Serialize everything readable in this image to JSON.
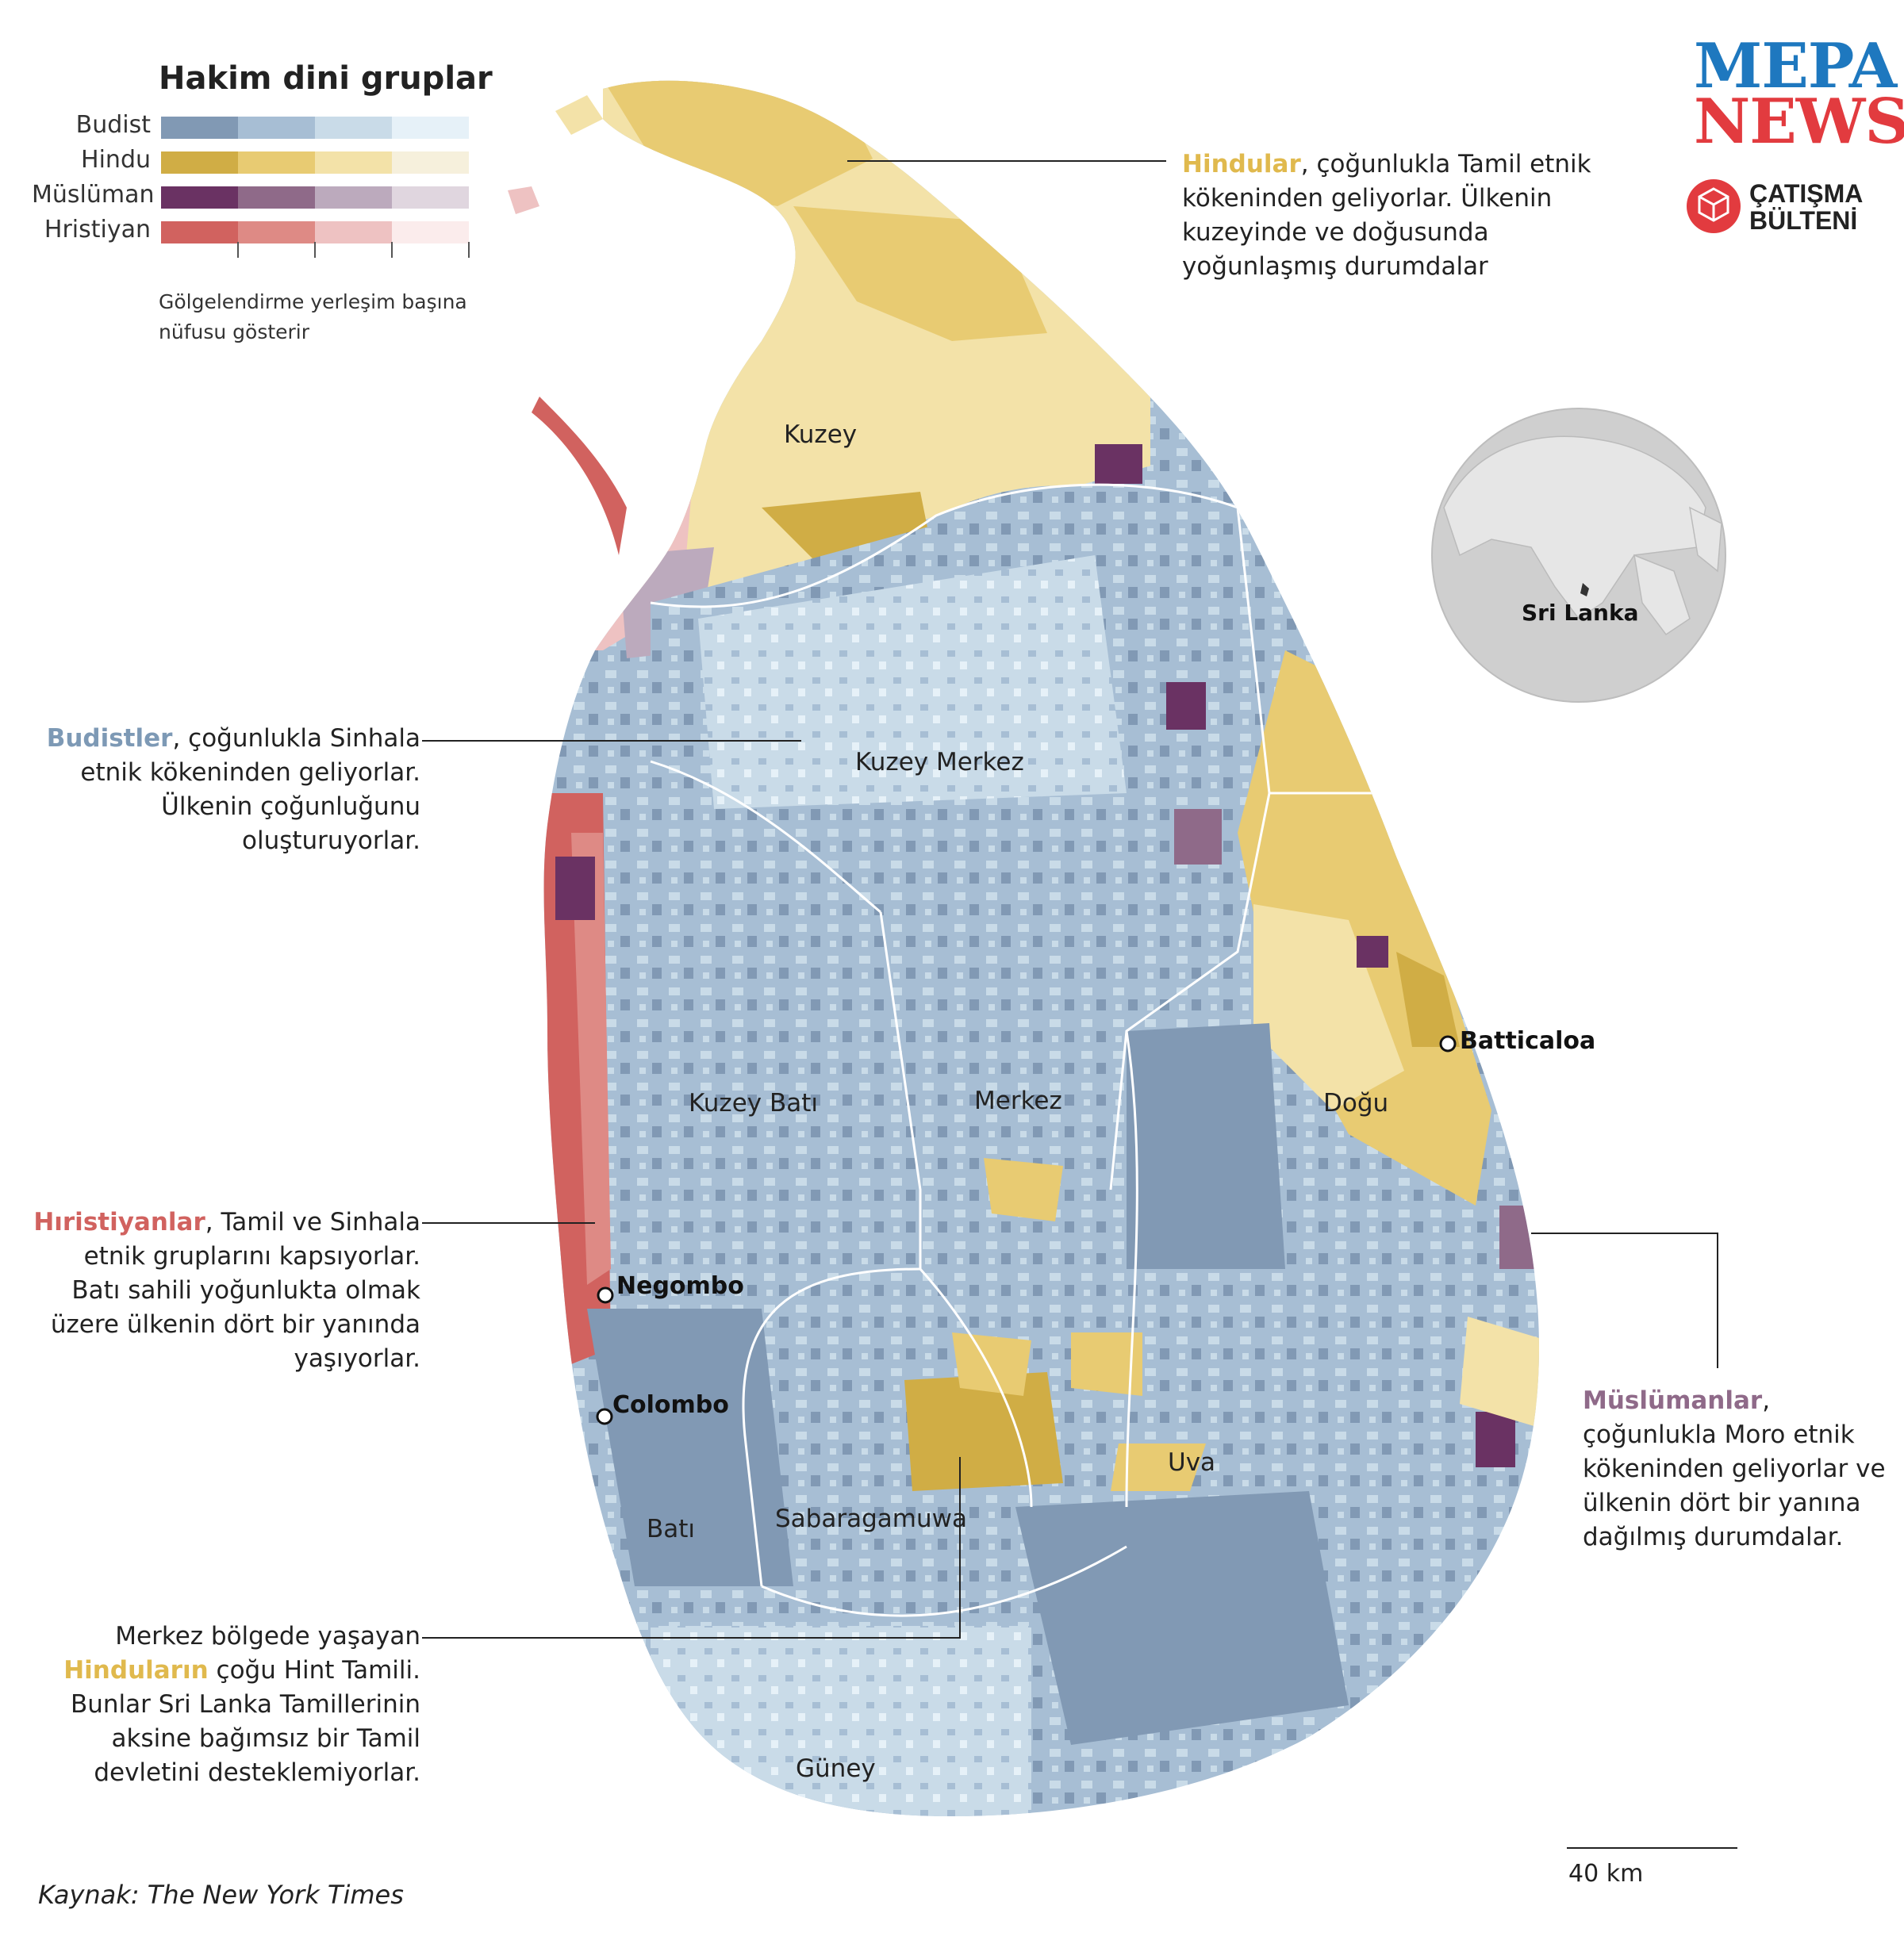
{
  "legend": {
    "title": "Hakim dini gruplar",
    "groups": [
      {
        "name": "Budist",
        "colors": [
          "#8199b4",
          "#a7bed4",
          "#c9dbe8",
          "#e6f1f8"
        ]
      },
      {
        "name": "Hindu",
        "colors": [
          "#d0ad45",
          "#e8cb72",
          "#f3e2a8",
          "#f6f0dc"
        ]
      },
      {
        "name": "Müslüman",
        "colors": [
          "#6a3263",
          "#8f6a89",
          "#bcaabd",
          "#e0d6df"
        ]
      },
      {
        "name": "Hristiyan",
        "colors": [
          "#d1625f",
          "#de8a85",
          "#eec2c2",
          "#fbecec"
        ]
      }
    ],
    "note": "Gölgelendirme yerleşim başına nüfusu gösterir"
  },
  "brand": {
    "line1": "MEPA",
    "line2": "NEWS",
    "sub1": "ÇATIŞMA",
    "sub2": "BÜLTENİ",
    "icon": "hexagon-logo-icon"
  },
  "annotations": {
    "hindu": {
      "highlight": "Hindular",
      "text": ", çoğunlukla Tamil etnik kökeninden geliyorlar. Ülkenin kuzeyinde ve doğusunda yoğunlaşmış durumdalar"
    },
    "buddhist": {
      "highlight": "Budistler",
      "text": ", çoğunlukla Sinhala etnik kökeninden geliyorlar. Ülkenin çoğunluğunu oluşturuyorlar."
    },
    "christian": {
      "highlight": "Hıristiyanlar",
      "text": ", Tamil ve Sinhala etnik gruplarını kapsıyorlar. Batı sahili yoğunlukta olmak üzere ülkenin dört bir yanında yaşıyorlar."
    },
    "muslim": {
      "highlight": "Müslümanlar",
      "text": ", çoğunlukla Moro etnik kökeninden geliyorlar ve ülkenin dört bir yanına dağılmış durumdalar."
    },
    "central": {
      "pre": "Merkez bölgede yaşayan ",
      "highlight": "Hinduların",
      "text": " çoğu Hint Tamili. Bunlar Sri Lanka Tamillerinin aksine bağımsız bir Tamil devletini desteklemiyorlar."
    }
  },
  "regions": {
    "north": "Kuzey",
    "north_central": "Kuzey Merkez",
    "north_west": "Kuzey Batı",
    "central": "Merkez",
    "east": "Doğu",
    "uva": "Uva",
    "sabaragamuwa": "Sabaragamuwa",
    "west": "Batı",
    "south": "Güney"
  },
  "cities": {
    "batticaloa": "Batticaloa",
    "negombo": "Negombo",
    "colombo": "Colombo"
  },
  "inset": {
    "label": "Sri Lanka"
  },
  "scale": {
    "label": "40 km"
  },
  "source": "Kaynak: The New York Times"
}
